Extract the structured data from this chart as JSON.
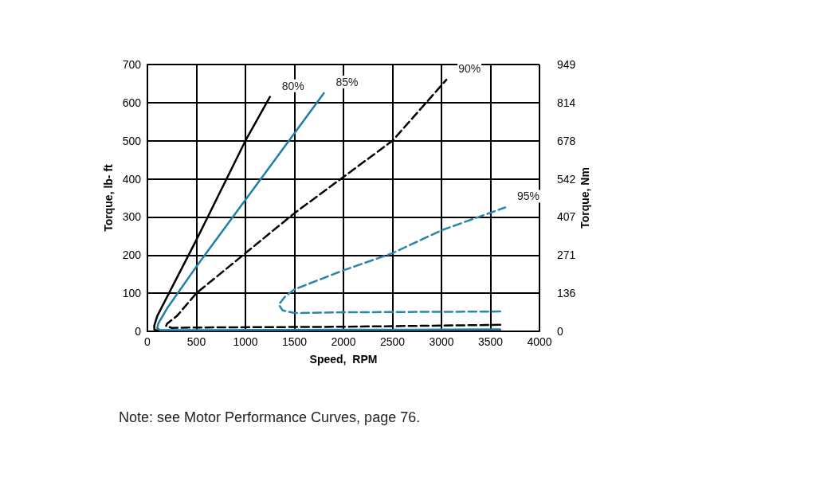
{
  "chart_data": {
    "type": "line",
    "xlabel": "Speed,  RPM",
    "ylabel": "Torque, lb- ft",
    "y2label": "Torque, Nm",
    "xlim": [
      0,
      4000
    ],
    "xticks": [
      0,
      500,
      1000,
      1500,
      2000,
      2500,
      3000,
      3500,
      4000
    ],
    "ylim": [
      0,
      700
    ],
    "yticks": [
      0,
      100,
      200,
      300,
      400,
      500,
      600,
      700
    ],
    "y2lim": [
      0,
      949
    ],
    "y2ticks": [
      0,
      136,
      271,
      407,
      542,
      678,
      814,
      949
    ],
    "grid": true,
    "legend": false,
    "annotations": [
      "Note: see Motor Performance Curves, page 76."
    ],
    "series": [
      {
        "name": "80%",
        "color": "#000000",
        "line_style": "solid",
        "x": [
          3600,
          1500,
          500,
          100,
          70,
          70,
          100,
          200,
          500,
          1000,
          1250
        ],
        "values": [
          1,
          1,
          1,
          2,
          5,
          15,
          40,
          90,
          240,
          500,
          615
        ]
      },
      {
        "name": "85%",
        "color": "#1f7fa8",
        "line_style": "solid",
        "x": [
          3600,
          2000,
          500,
          130,
          100,
          110,
          200,
          500,
          1000,
          1500,
          1800
        ],
        "values": [
          5,
          4,
          3,
          3,
          8,
          20,
          60,
          170,
          345,
          520,
          625
        ]
      },
      {
        "name": "90%",
        "color": "#000000",
        "line_style": "dashed",
        "x": [
          3600,
          2000,
          500,
          250,
          190,
          200,
          300,
          500,
          1000,
          1500,
          2500,
          3050
        ],
        "values": [
          17,
          12,
          10,
          9,
          14,
          20,
          40,
          100,
          205,
          310,
          500,
          660
        ]
      },
      {
        "name": "95%",
        "color": "#2a86ad",
        "line_style": "dashed",
        "x": [
          3600,
          2000,
          1500,
          1380,
          1340,
          1400,
          1500,
          2000,
          2500,
          3000,
          3650
        ],
        "values": [
          52,
          50,
          48,
          55,
          70,
          90,
          110,
          160,
          205,
          265,
          325
        ]
      }
    ]
  }
}
